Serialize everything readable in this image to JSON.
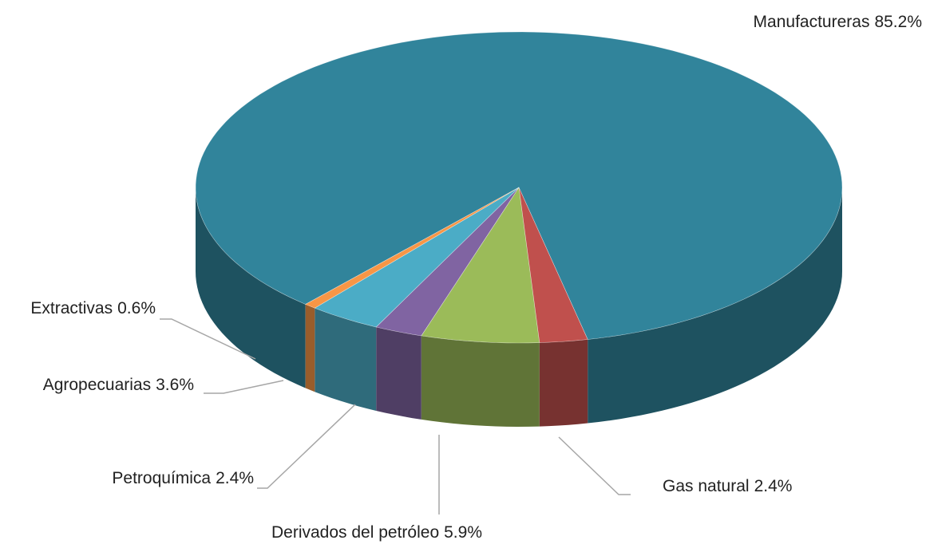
{
  "chart_data": {
    "type": "pie3d",
    "categories": [
      "Manufactureras",
      "Gas natural",
      "Derivados del petróleo",
      "Petroquímica",
      "Agropecuarias",
      "Extractivas"
    ],
    "values": [
      85.2,
      2.4,
      5.9,
      2.4,
      3.6,
      0.6
    ],
    "value_labels": [
      "85.2%",
      "2.4%",
      "5.9%",
      "2.4%",
      "3.6%",
      "0.6%"
    ],
    "colors": [
      "#31849b",
      "#c0504d",
      "#9bbb59",
      "#8064a2",
      "#4bacc6",
      "#f79646"
    ]
  }
}
